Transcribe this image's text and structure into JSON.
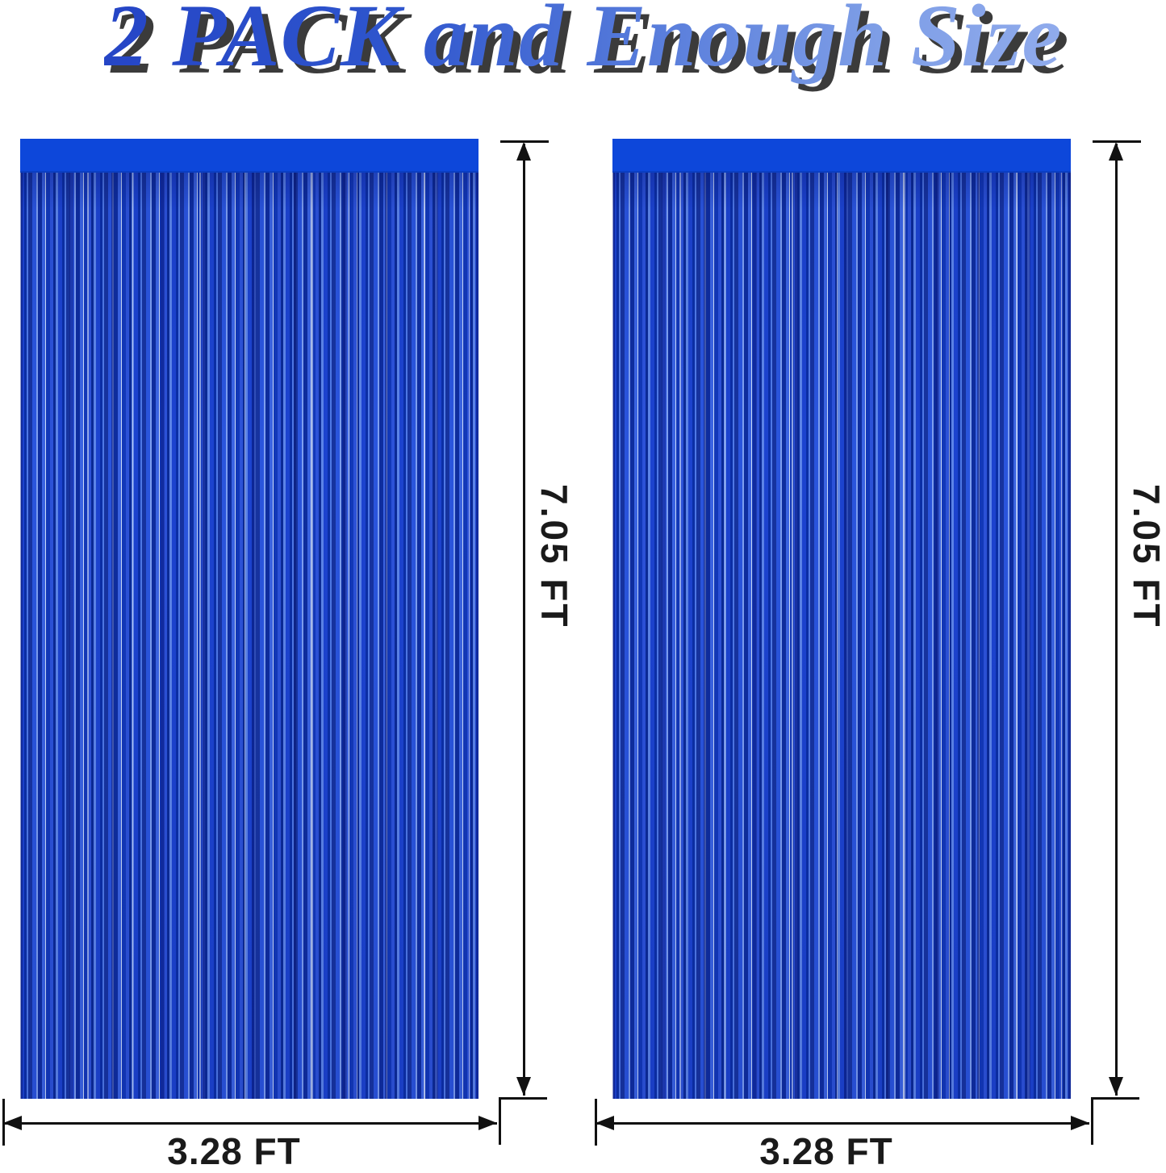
{
  "title": {
    "text": "2 PACK and Enough Size"
  },
  "panels": [
    {
      "height_label": "7.05 FT",
      "width_label": "3.28 FT"
    },
    {
      "height_label": "7.05 FT",
      "width_label": "3.28 FT"
    }
  ],
  "colors": {
    "header_band": "#0d47da",
    "fringe_base": "#1c43cf",
    "fringe_highlight": "#7e9ff0",
    "dimension_lines": "#111111",
    "label_text": "#1a1a1a",
    "title_gradient_start": "#2545c6",
    "title_gradient_end": "#90abec",
    "title_shadow": "#3b3b3b",
    "background": "#ffffff"
  }
}
